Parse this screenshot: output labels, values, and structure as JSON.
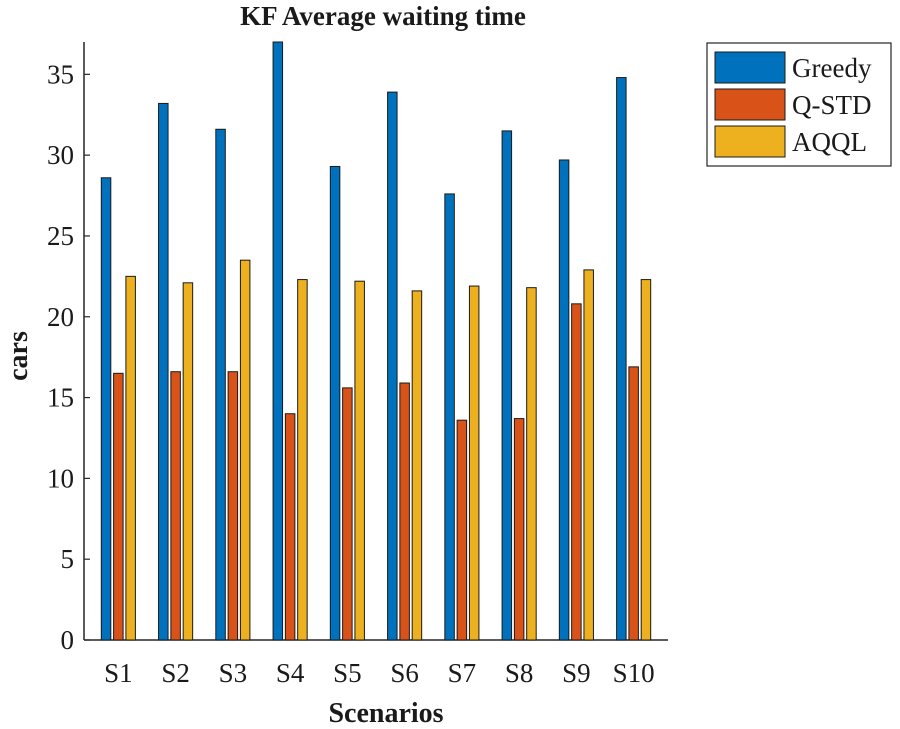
{
  "chart_data": {
    "type": "bar",
    "title": "KF Average waiting time",
    "xlabel": "Scenarios",
    "ylabel": "cars",
    "categories": [
      "S1",
      "S2",
      "S3",
      "S4",
      "S5",
      "S6",
      "S7",
      "S8",
      "S9",
      "S10"
    ],
    "ylim": [
      0,
      37
    ],
    "yticks": [
      0,
      5,
      10,
      15,
      20,
      25,
      30,
      35
    ],
    "legend_position": "top-right, outside plot",
    "grid": false,
    "series": [
      {
        "name": "Greedy",
        "color": "#0072BD",
        "values": [
          28.6,
          33.2,
          31.6,
          37.0,
          29.3,
          33.9,
          27.6,
          31.5,
          29.7,
          34.8
        ]
      },
      {
        "name": "Q-STD",
        "color": "#D95319",
        "values": [
          16.5,
          16.6,
          16.6,
          14.0,
          15.6,
          15.9,
          13.6,
          13.7,
          20.8,
          16.9
        ]
      },
      {
        "name": "AQQL",
        "color": "#EDB120",
        "values": [
          22.5,
          22.1,
          23.5,
          22.3,
          22.2,
          21.6,
          21.9,
          21.8,
          22.9,
          22.3
        ]
      }
    ]
  }
}
